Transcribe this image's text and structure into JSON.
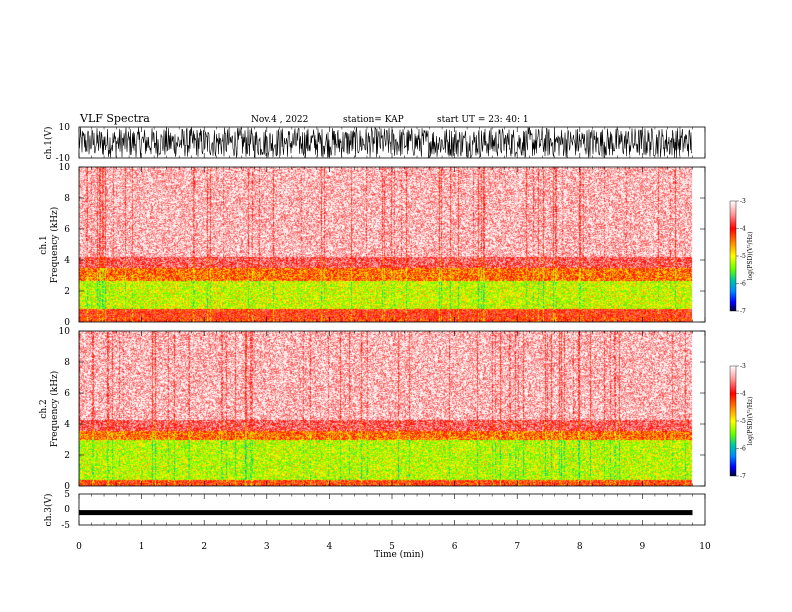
{
  "header": {
    "title": "VLF Spectra",
    "date": "Nov.4 , 2022",
    "station": "station= KAP",
    "start_ut": "start UT = 23: 40: 1"
  },
  "chart_data": [
    {
      "type": "line",
      "panel": "ch1-waveform",
      "ylabel": "ch.1(V)",
      "ylim": [
        -10,
        10
      ],
      "ytick_labels": [
        "10",
        "-10"
      ],
      "xlim": [
        0,
        10
      ],
      "description_of_values": "dense noise filling most of range"
    },
    {
      "type": "heatmap",
      "panel": "ch1-spectrogram",
      "ylabel_channel": "ch.1",
      "ylabel": "Frequency (kHz)",
      "ylim": [
        0,
        10
      ],
      "ytick_labels": [
        "0",
        "2",
        "4",
        "6",
        "8",
        "10"
      ],
      "xlim": [
        0,
        10
      ],
      "data_end_min": 9.8,
      "colorbar": {
        "label": "log(PSD)(V²/Hz)",
        "range": [
          -7,
          -3
        ],
        "tick_labels": [
          "-3",
          "-4",
          "-5",
          "-6",
          "-7"
        ]
      },
      "bands": [
        {
          "from_khz": 0.0,
          "to_khz": 0.3,
          "level": -4.0
        },
        {
          "from_khz": 0.3,
          "to_khz": 0.9,
          "level": -3.9
        },
        {
          "from_khz": 0.9,
          "to_khz": 2.7,
          "level": -4.8
        },
        {
          "from_khz": 2.7,
          "to_khz": 3.5,
          "level": -4.2
        },
        {
          "from_khz": 3.5,
          "to_khz": 4.2,
          "level": -3.6
        },
        {
          "from_khz": 4.2,
          "to_khz": 10.0,
          "level": -3.25
        }
      ]
    },
    {
      "type": "heatmap",
      "panel": "ch2-spectrogram",
      "ylabel_channel": "ch.2",
      "ylabel": "Frequency (kHz)",
      "ylim": [
        0,
        10
      ],
      "ytick_labels": [
        "0",
        "2",
        "4",
        "6",
        "8",
        "10"
      ],
      "xlim": [
        0,
        10
      ],
      "data_end_min": 9.8,
      "colorbar": {
        "label": "log(PSD)(V²/Hz)",
        "range": [
          -7,
          -3
        ],
        "tick_labels": [
          "-3",
          "-4",
          "-5",
          "-6",
          "-7"
        ]
      },
      "bands": [
        {
          "from_khz": 0.0,
          "to_khz": 0.4,
          "level": -4.0
        },
        {
          "from_khz": 0.4,
          "to_khz": 3.0,
          "level": -4.85
        },
        {
          "from_khz": 3.0,
          "to_khz": 3.6,
          "level": -4.2
        },
        {
          "from_khz": 3.6,
          "to_khz": 4.3,
          "level": -3.6
        },
        {
          "from_khz": 4.3,
          "to_khz": 10.0,
          "level": -3.25
        }
      ]
    },
    {
      "type": "line",
      "panel": "ch3-waveform",
      "ylabel": "ch.3(V)",
      "ylim": [
        -5,
        5
      ],
      "ytick_labels": [
        "5",
        "0",
        "-5"
      ],
      "xlim": [
        0,
        10
      ],
      "level_v": -1.0
    }
  ],
  "xaxis": {
    "label": "Time (min)",
    "tick_labels": [
      "0",
      "1",
      "2",
      "3",
      "4",
      "5",
      "6",
      "7",
      "8",
      "9",
      "10"
    ]
  }
}
